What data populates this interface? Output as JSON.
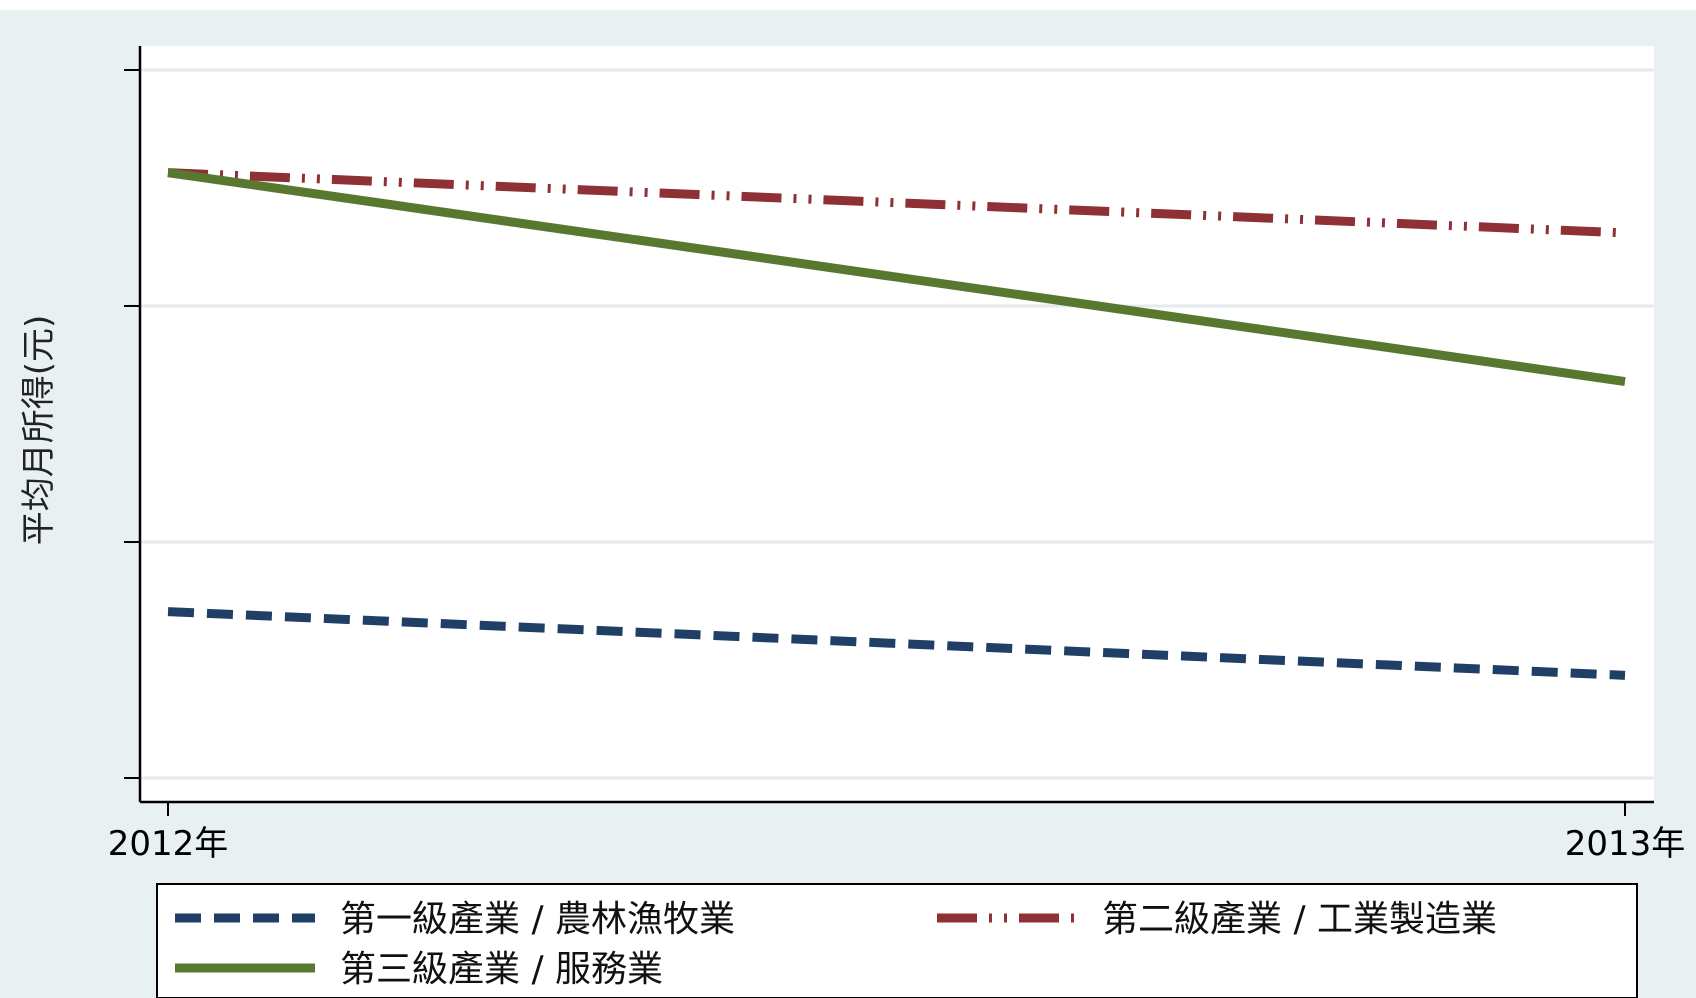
{
  "chart_data": {
    "type": "line",
    "title": "",
    "xlabel": "",
    "ylabel": "平均月所得(元)",
    "categories": [
      "2012年",
      "2013年"
    ],
    "ylim": [
      0,
      100
    ],
    "grid": true,
    "legend_position": "bottom",
    "series": [
      {
        "name": "第一級產業 / 農林漁牧業",
        "values": [
          23.5,
          14.5
        ],
        "color": "#1f3f66",
        "dash": "dash"
      },
      {
        "name": "第二級產業 / 工業製造業",
        "values": [
          85.5,
          77.0
        ],
        "color": "#8e3036",
        "dash": "dashdot"
      },
      {
        "name": "第三級產業 / 服務業",
        "values": [
          85.5,
          56.0
        ],
        "color": "#58782f",
        "dash": "solid"
      }
    ]
  },
  "colors": {
    "outer_background": "#e8f0f1",
    "plot_background": "#ffffff",
    "grid": "#e3ebec"
  }
}
